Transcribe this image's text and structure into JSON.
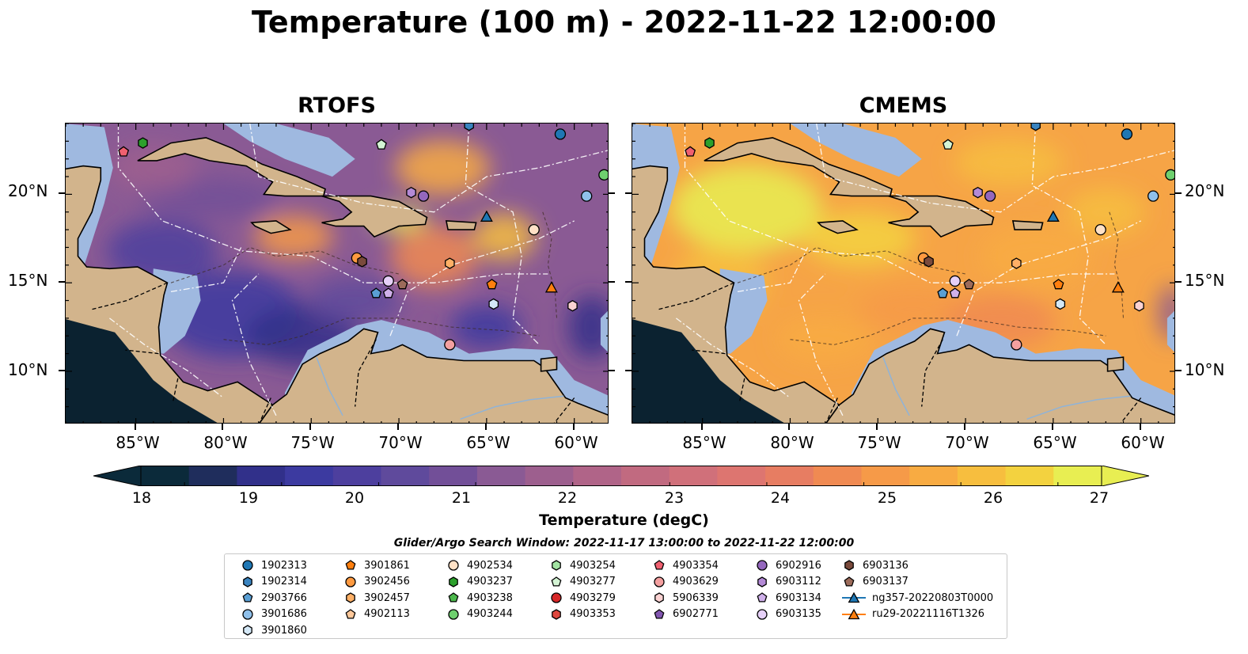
{
  "title": "Temperature (100 m) - 2022-11-22 12:00:00",
  "panels": [
    {
      "title": "RTOFS"
    },
    {
      "title": "CMEMS"
    }
  ],
  "lat_labels": [
    "20°N",
    "15°N",
    "10°N"
  ],
  "lon_labels": [
    "85°W",
    "80°W",
    "75°W",
    "70°W",
    "65°W",
    "60°W"
  ],
  "colorbar": {
    "label": "Temperature (degC)",
    "ticks": [
      "18",
      "19",
      "20",
      "21",
      "22",
      "23",
      "24",
      "25",
      "26",
      "27"
    ],
    "min": 17.55,
    "max": 27.45,
    "extend": "both",
    "colors": [
      "#0b2a3a",
      "#1f2d5c",
      "#31308a",
      "#3c3aa0",
      "#4d3f9e",
      "#5f4a9c",
      "#724f98",
      "#8a5a94",
      "#9d5f8e",
      "#b06488",
      "#c16a80",
      "#d0707a",
      "#dd7570",
      "#e77d62",
      "#f08a52",
      "#f69a48",
      "#f8ab42",
      "#f7be3e",
      "#f3d23f",
      "#e8ee52"
    ]
  },
  "search_window": "Glider/Argo Search Window: 2022-11-17 13:00:00 to 2022-11-22 12:00:00",
  "legend": {
    "items": [
      {
        "label": "1902313",
        "marker": "circle",
        "color": "#1f77b4"
      },
      {
        "label": "1902314",
        "marker": "hexagon",
        "color": "#3a84c0"
      },
      {
        "label": "2903766",
        "marker": "pentagon",
        "color": "#5a9fd4"
      },
      {
        "label": "3901686",
        "marker": "circle",
        "color": "#8fc0ea"
      },
      {
        "label": "3901860",
        "marker": "hexagon",
        "color": "#d4e8f7"
      },
      {
        "label": "3901861",
        "marker": "pentagon",
        "color": "#ff7f0e"
      },
      {
        "label": "3902456",
        "marker": "circle",
        "color": "#ff9a40"
      },
      {
        "label": "3902457",
        "marker": "hexagon",
        "color": "#ffb066"
      },
      {
        "label": "4902113",
        "marker": "pentagon",
        "color": "#ffc89a"
      },
      {
        "label": "4902534",
        "marker": "circle",
        "color": "#ffe1c6"
      },
      {
        "label": "4903237",
        "marker": "hexagon",
        "color": "#2ca02c"
      },
      {
        "label": "4903238",
        "marker": "pentagon",
        "color": "#4cb84c"
      },
      {
        "label": "4903244",
        "marker": "circle",
        "color": "#6fd06f"
      },
      {
        "label": "4903254",
        "marker": "hexagon",
        "color": "#a3e4a3"
      },
      {
        "label": "4903277",
        "marker": "pentagon",
        "color": "#d4f4d4"
      },
      {
        "label": "4903279",
        "marker": "circle",
        "color": "#d62728"
      },
      {
        "label": "4903353",
        "marker": "hexagon",
        "color": "#e0483f"
      },
      {
        "label": "4903354",
        "marker": "pentagon",
        "color": "#f06070"
      },
      {
        "label": "4903629",
        "marker": "circle",
        "color": "#f4a0a0"
      },
      {
        "label": "5906339",
        "marker": "hexagon",
        "color": "#fbd2d2"
      },
      {
        "label": "6902771",
        "marker": "pentagon",
        "color": "#8256b0"
      },
      {
        "label": "6902916",
        "marker": "circle",
        "color": "#9467bd"
      },
      {
        "label": "6903112",
        "marker": "hexagon",
        "color": "#b48ad6"
      },
      {
        "label": "6903134",
        "marker": "pentagon",
        "color": "#cfb0ea"
      },
      {
        "label": "6903135",
        "marker": "circle",
        "color": "#e6d0f8"
      },
      {
        "label": "6903136",
        "marker": "hexagon",
        "color": "#7a4a3c"
      },
      {
        "label": "6903137",
        "marker": "pentagon",
        "color": "#9c6b5a"
      },
      {
        "label": "ng357-20220803T0000",
        "marker": "triangle-line",
        "color": "#1f77b4"
      },
      {
        "label": "ru29-20221116T1326",
        "marker": "triangle-line",
        "color": "#ff7f0e"
      }
    ]
  },
  "map_extent": {
    "lon_min": -89,
    "lon_max": -58,
    "lat_min": 7,
    "lat_max": 24
  },
  "colors": {
    "land": "#d2b48c",
    "shelf": "#9fb9e0",
    "deep": "#0b2230"
  },
  "platforms": [
    {
      "id": "4903354",
      "lon": -85.7,
      "lat": 22.4,
      "marker": "pentagon",
      "color": "#f06070"
    },
    {
      "id": "4903237",
      "lon": -84.6,
      "lat": 22.9,
      "marker": "hexagon",
      "color": "#2ca02c"
    },
    {
      "id": "4903277",
      "lon": -71.0,
      "lat": 22.8,
      "marker": "pentagon",
      "color": "#d4f4d4"
    },
    {
      "id": "1902314",
      "lon": -66.0,
      "lat": 23.9,
      "marker": "hexagon",
      "color": "#3a84c0"
    },
    {
      "id": "1902313",
      "lon": -60.8,
      "lat": 23.4,
      "marker": "circle",
      "color": "#1f77b4"
    },
    {
      "id": "4903244",
      "lon": -58.3,
      "lat": 21.1,
      "marker": "circle",
      "color": "#6fd06f"
    },
    {
      "id": "3901686",
      "lon": -59.3,
      "lat": 19.9,
      "marker": "circle",
      "color": "#8fc0ea"
    },
    {
      "id": "6902916",
      "lon": -68.6,
      "lat": 19.9,
      "marker": "circle",
      "color": "#9467bd"
    },
    {
      "id": "6903112",
      "lon": -69.3,
      "lat": 20.1,
      "marker": "hexagon",
      "color": "#b48ad6"
    },
    {
      "id": "4902534",
      "lon": -62.3,
      "lat": 18.0,
      "marker": "circle",
      "color": "#ffe1c6"
    },
    {
      "id": "3902457",
      "lon": -67.1,
      "lat": 16.1,
      "marker": "hexagon",
      "color": "#ffb066"
    },
    {
      "id": "3902456",
      "lon": -72.4,
      "lat": 16.4,
      "marker": "circle",
      "color": "#ff9a40"
    },
    {
      "id": "6903136",
      "lon": -72.1,
      "lat": 16.2,
      "marker": "hexagon",
      "color": "#7a4a3c"
    },
    {
      "id": "6903135",
      "lon": -70.6,
      "lat": 15.1,
      "marker": "circle",
      "color": "#e6d0f8"
    },
    {
      "id": "6903137",
      "lon": -69.8,
      "lat": 14.9,
      "marker": "pentagon",
      "color": "#9c6b5a"
    },
    {
      "id": "2903766",
      "lon": -71.3,
      "lat": 14.4,
      "marker": "pentagon",
      "color": "#5a9fd4"
    },
    {
      "id": "6903134",
      "lon": -70.6,
      "lat": 14.4,
      "marker": "pentagon",
      "color": "#cfb0ea"
    },
    {
      "id": "3901861",
      "lon": -64.7,
      "lat": 14.9,
      "marker": "pentagon",
      "color": "#ff7f0e"
    },
    {
      "id": "3901860",
      "lon": -64.6,
      "lat": 13.8,
      "marker": "hexagon",
      "color": "#d4e8f7"
    },
    {
      "id": "5906339",
      "lon": -60.1,
      "lat": 13.7,
      "marker": "hexagon",
      "color": "#fbd2d2"
    },
    {
      "id": "4903629",
      "lon": -67.1,
      "lat": 11.5,
      "marker": "circle",
      "color": "#f4a0a0"
    },
    {
      "id": "ng357-20220803T0000",
      "lon": -65.0,
      "lat": 18.7,
      "marker": "triangle",
      "color": "#1f77b4"
    },
    {
      "id": "ru29-20221116T1326",
      "lon": -61.3,
      "lat": 14.7,
      "marker": "triangle",
      "color": "#ff7f0e"
    }
  ]
}
